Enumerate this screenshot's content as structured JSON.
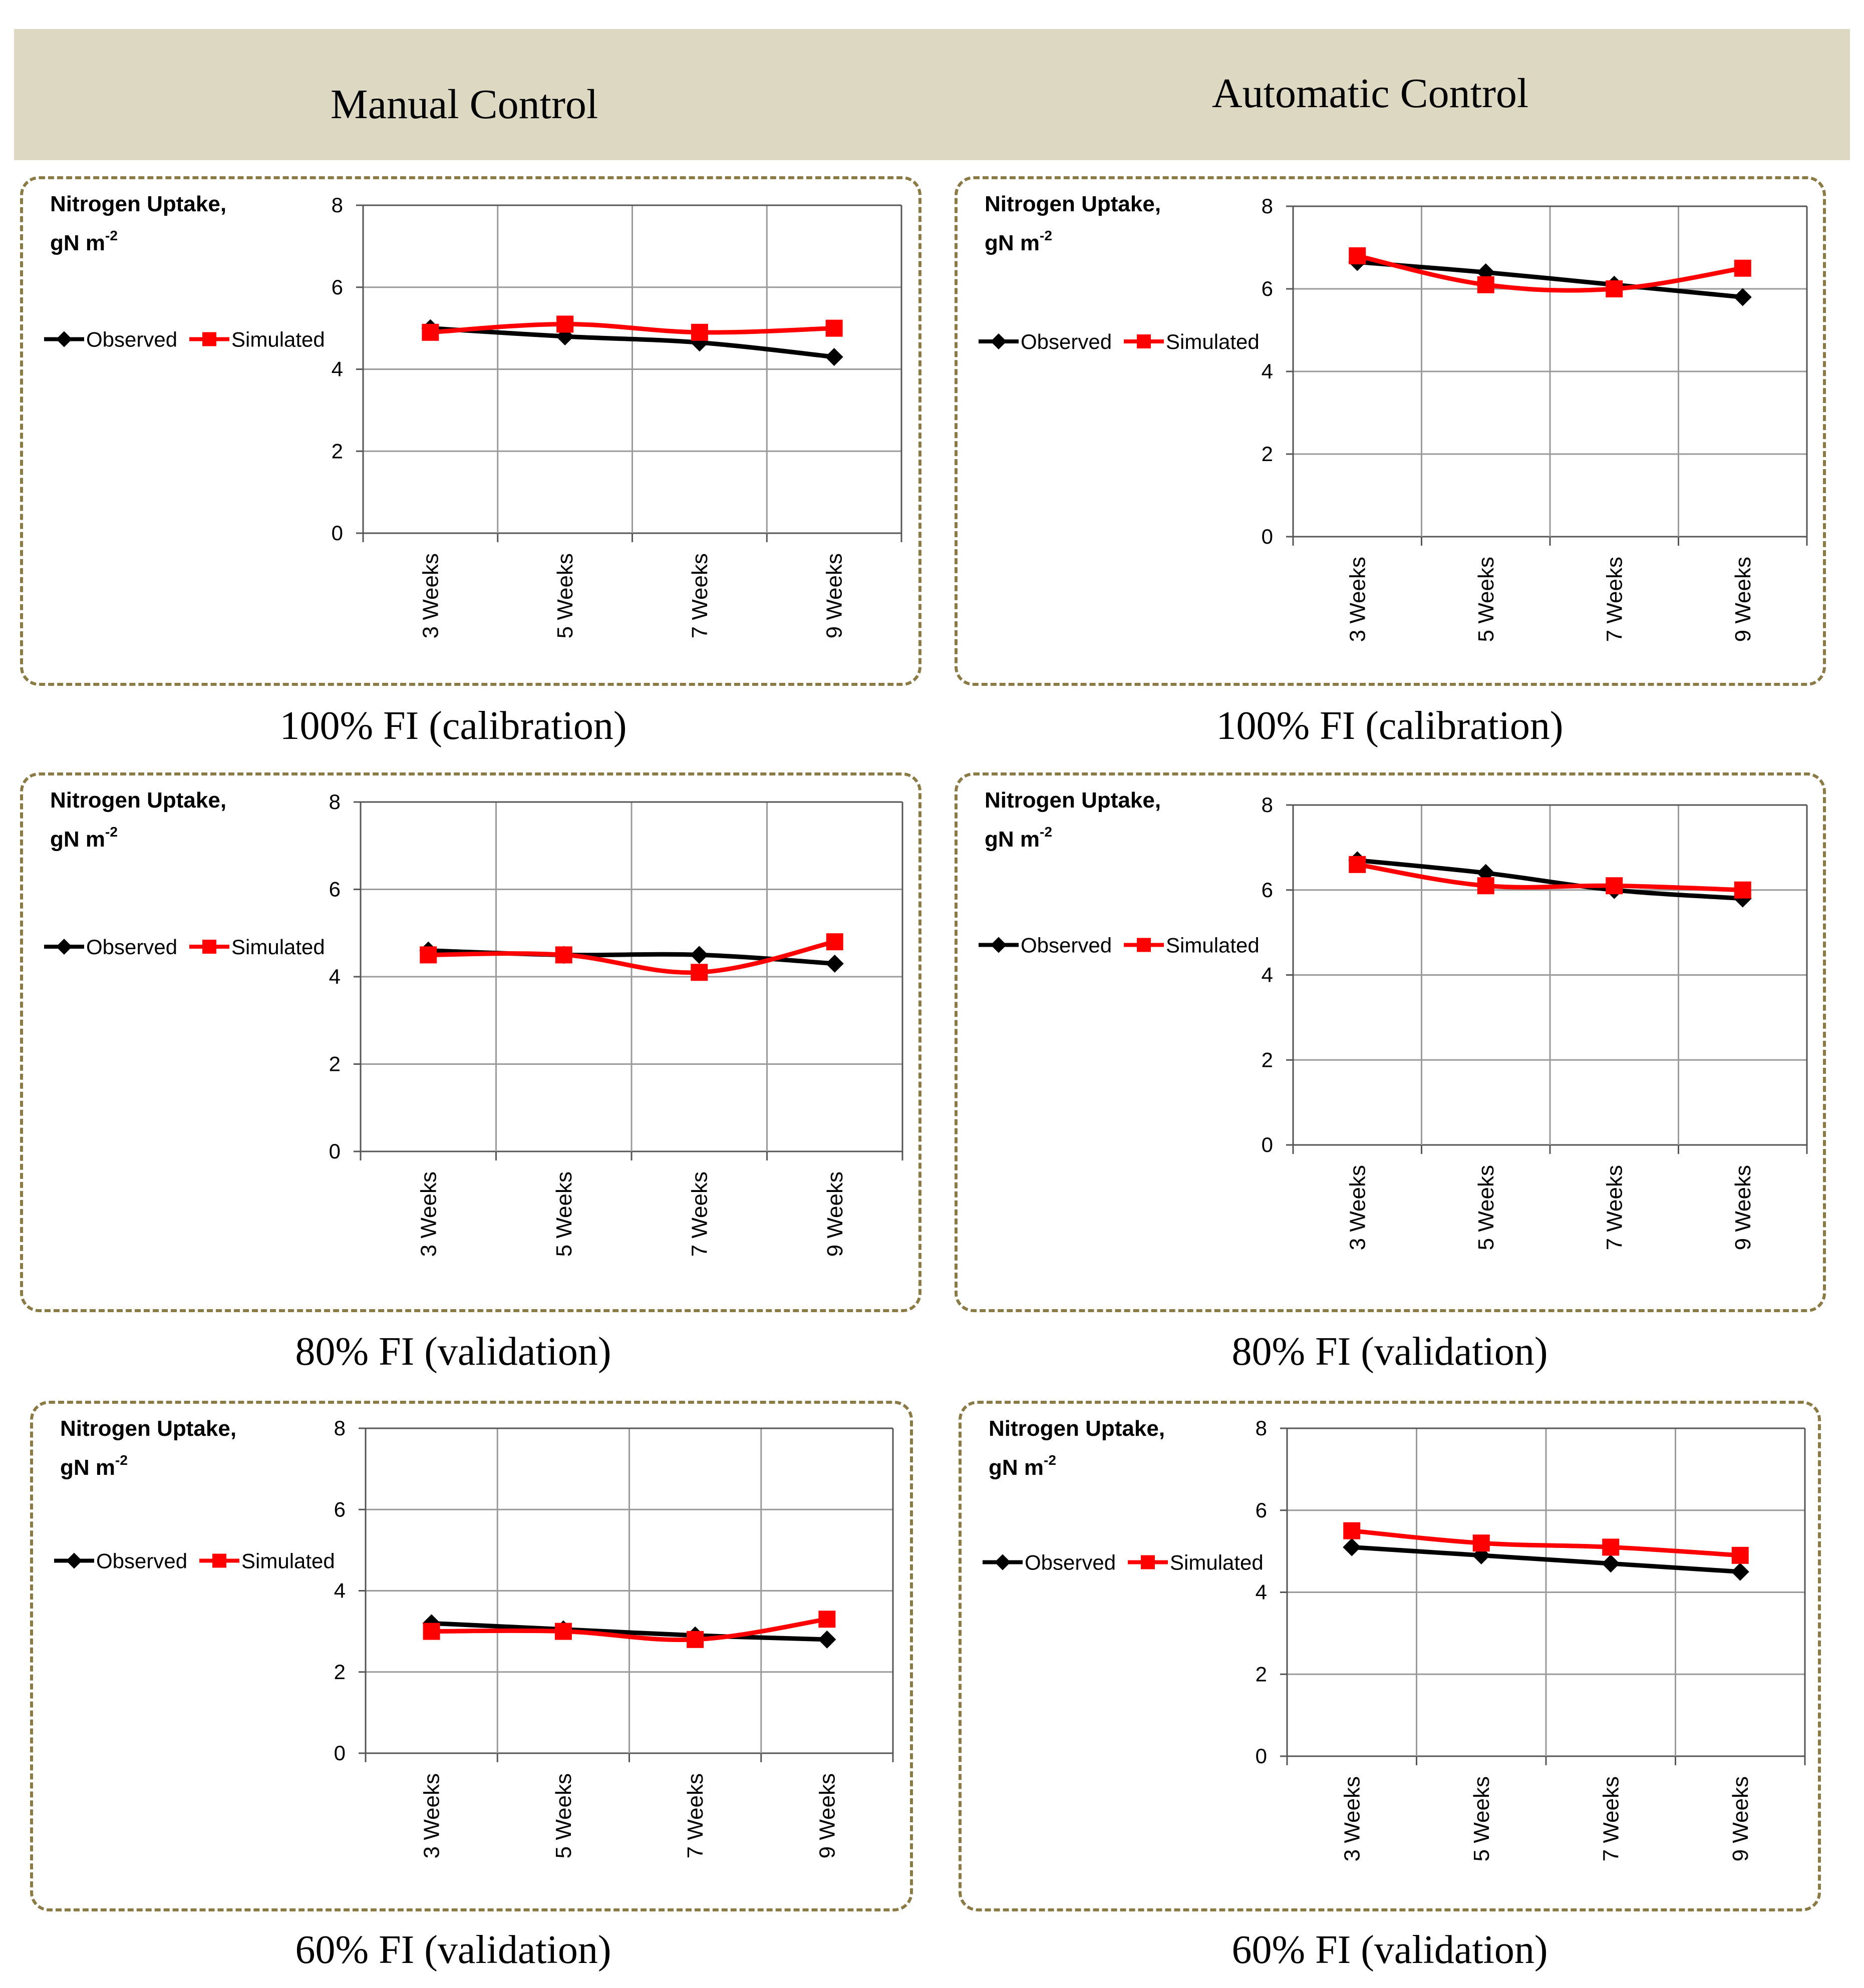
{
  "header": {
    "manual_title": "Manual Control",
    "automatic_title": "Automatic Control"
  },
  "colors": {
    "observed": "#000000",
    "simulated": "#ff0000",
    "grid": "#9a9a9a",
    "header_band": "#dcd8c2",
    "frame": "#8a7a45"
  },
  "chart_data": [
    {
      "id": "manual-100",
      "panel": "Manual Control",
      "type": "line",
      "caption": "100% FI (calibration)",
      "ylabel_line1": "Nitrogen Uptake,",
      "ylabel_line2": "gN m",
      "ylabel_sup": "-2",
      "categories": [
        "3 Weeks",
        "5 Weeks",
        "7 Weeks",
        "9 Weeks"
      ],
      "yticks": [
        "0",
        "2",
        "4",
        "6",
        "8"
      ],
      "ylim": [
        0,
        8
      ],
      "grid": true,
      "legend": "left",
      "series": [
        {
          "name": "Observed",
          "marker": "diamond",
          "values": [
            5.0,
            4.8,
            4.65,
            4.3
          ]
        },
        {
          "name": "Simulated",
          "marker": "square",
          "values": [
            4.9,
            5.1,
            4.9,
            5.0
          ]
        }
      ]
    },
    {
      "id": "auto-100",
      "panel": "Automatic Control",
      "type": "line",
      "caption": "100% FI (calibration)",
      "ylabel_line1": "Nitrogen Uptake,",
      "ylabel_line2": "gN m",
      "ylabel_sup": "-2",
      "categories": [
        "3 Weeks",
        "5 Weeks",
        "7 Weeks",
        "9 Weeks"
      ],
      "yticks": [
        "0",
        "2",
        "4",
        "6",
        "8"
      ],
      "ylim": [
        0,
        8
      ],
      "grid": true,
      "legend": "left",
      "series": [
        {
          "name": "Observed",
          "marker": "diamond",
          "values": [
            6.65,
            6.4,
            6.1,
            5.8
          ]
        },
        {
          "name": "Simulated",
          "marker": "square",
          "values": [
            6.8,
            6.1,
            6.0,
            6.5
          ]
        }
      ]
    },
    {
      "id": "manual-80",
      "panel": "Manual Control",
      "type": "line",
      "caption": "80% FI (validation)",
      "ylabel_line1": "Nitrogen Uptake,",
      "ylabel_line2": "gN m",
      "ylabel_sup": "-2",
      "categories": [
        "3 Weeks",
        "5 Weeks",
        "7 Weeks",
        "9 Weeks"
      ],
      "yticks": [
        "0",
        "2",
        "4",
        "6",
        "8"
      ],
      "ylim": [
        0,
        8
      ],
      "grid": true,
      "legend": "left",
      "series": [
        {
          "name": "Observed",
          "marker": "diamond",
          "values": [
            4.6,
            4.5,
            4.5,
            4.3
          ]
        },
        {
          "name": "Simulated",
          "marker": "square",
          "values": [
            4.5,
            4.5,
            4.1,
            4.8
          ]
        }
      ]
    },
    {
      "id": "auto-80",
      "panel": "Automatic Control",
      "type": "line",
      "caption": "80% FI (validation)",
      "ylabel_line1": "Nitrogen Uptake,",
      "ylabel_line2": "gN m",
      "ylabel_sup": "-2",
      "categories": [
        "3 Weeks",
        "5 Weeks",
        "7 Weeks",
        "9 Weeks"
      ],
      "yticks": [
        "0",
        "2",
        "4",
        "6",
        "8"
      ],
      "ylim": [
        0,
        8
      ],
      "grid": true,
      "legend": "left",
      "series": [
        {
          "name": "Observed",
          "marker": "diamond",
          "values": [
            6.7,
            6.4,
            6.0,
            5.8
          ]
        },
        {
          "name": "Simulated",
          "marker": "square",
          "values": [
            6.6,
            6.1,
            6.1,
            6.0
          ]
        }
      ]
    },
    {
      "id": "manual-60",
      "panel": "Manual Control",
      "type": "line",
      "caption": "60% FI (validation)",
      "ylabel_line1": "Nitrogen Uptake,",
      "ylabel_line2": "gN m",
      "ylabel_sup": "-2",
      "categories": [
        "3 Weeks",
        "5 Weeks",
        "7 Weeks",
        "9 Weeks"
      ],
      "yticks": [
        "0",
        "2",
        "4",
        "6",
        "8"
      ],
      "ylim": [
        0,
        8
      ],
      "grid": true,
      "legend": "left",
      "series": [
        {
          "name": "Observed",
          "marker": "diamond",
          "values": [
            3.2,
            3.05,
            2.9,
            2.8
          ]
        },
        {
          "name": "Simulated",
          "marker": "square",
          "values": [
            3.0,
            3.0,
            2.8,
            3.3
          ]
        }
      ]
    },
    {
      "id": "auto-60",
      "panel": "Automatic Control",
      "type": "line",
      "caption": "60% FI (validation)",
      "ylabel_line1": "Nitrogen Uptake,",
      "ylabel_line2": "gN m",
      "ylabel_sup": "-2",
      "categories": [
        "3 Weeks",
        "5 Weeks",
        "7 Weeks",
        "9 Weeks"
      ],
      "yticks": [
        "0",
        "2",
        "4",
        "6",
        "8"
      ],
      "ylim": [
        0,
        8
      ],
      "grid": true,
      "legend": "left",
      "series": [
        {
          "name": "Observed",
          "marker": "diamond",
          "values": [
            5.1,
            4.9,
            4.7,
            4.5
          ]
        },
        {
          "name": "Simulated",
          "marker": "square",
          "values": [
            5.5,
            5.2,
            5.1,
            4.9
          ]
        }
      ]
    }
  ]
}
